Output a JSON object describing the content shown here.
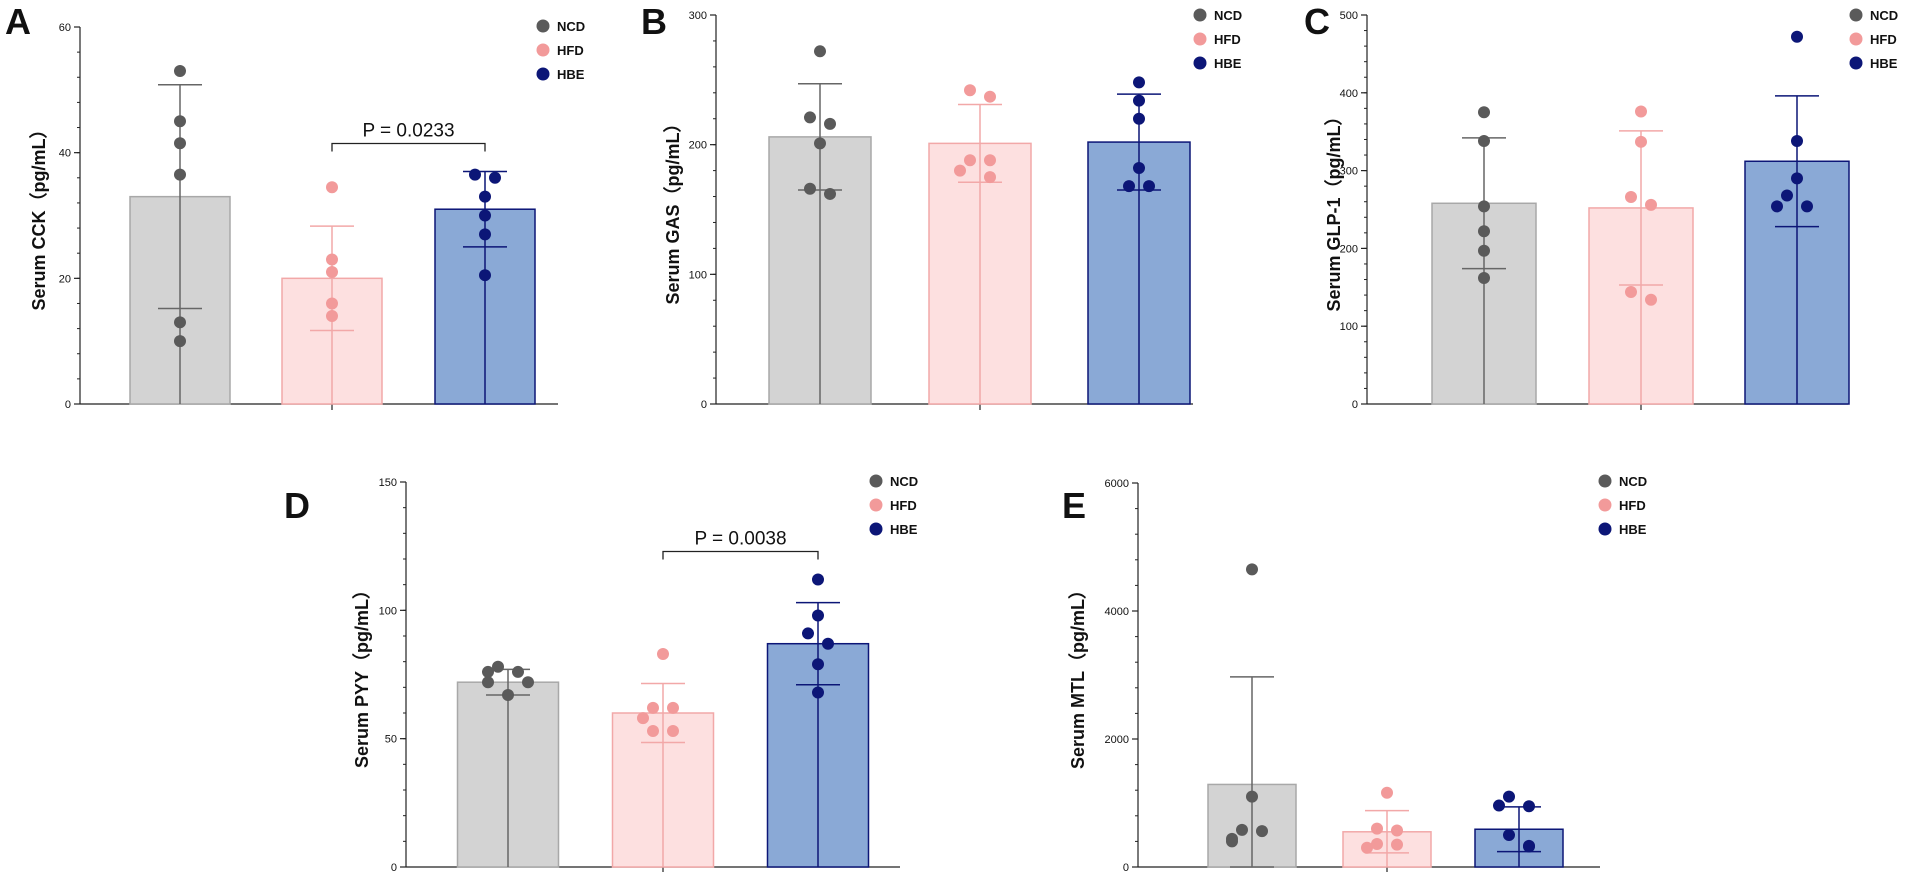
{
  "chart_data": [
    {
      "type": "bar",
      "panel": "A",
      "ylabel": "Serum CCK（pg/mL）",
      "ylim": [
        0,
        60
      ],
      "yticks": [
        0,
        20,
        40,
        60
      ],
      "categories": [
        "NCD",
        "HFD",
        "HBE"
      ],
      "means": [
        33,
        20,
        31
      ],
      "sd": [
        17.8,
        8.3,
        6
      ],
      "points": [
        [
          53,
          45,
          41.5,
          36.5,
          13,
          10
        ],
        [
          34.5,
          23,
          21,
          16,
          14
        ],
        [
          36.5,
          36,
          33,
          30,
          27,
          20.5
        ]
      ],
      "significance": {
        "from": "HFD",
        "to": "HBE",
        "label": "P = 0.0233"
      }
    },
    {
      "type": "bar",
      "panel": "B",
      "ylabel": "Serum GAS（pg/mL）",
      "ylim": [
        0,
        300
      ],
      "yticks": [
        0,
        100,
        200,
        300
      ],
      "categories": [
        "NCD",
        "HFD",
        "HBE"
      ],
      "means": [
        206,
        201,
        202
      ],
      "sd": [
        41,
        30,
        37
      ],
      "points": [
        [
          272,
          221,
          216,
          201,
          166,
          162
        ],
        [
          242,
          237,
          188,
          188,
          180,
          175
        ],
        [
          248,
          234,
          220,
          182,
          168,
          168
        ]
      ]
    },
    {
      "type": "bar",
      "panel": "C",
      "ylabel": "Serum GLP-1（pg/mL）",
      "ylim": [
        0,
        500
      ],
      "yticks": [
        0,
        100,
        200,
        300,
        400,
        500
      ],
      "categories": [
        "NCD",
        "HFD",
        "HBE"
      ],
      "means": [
        258,
        252,
        312
      ],
      "sd": [
        84,
        99,
        84
      ],
      "points": [
        [
          375,
          338,
          254,
          222,
          197,
          162
        ],
        [
          376,
          337,
          266,
          256,
          144,
          134
        ],
        [
          472,
          338,
          290,
          268,
          254,
          254
        ]
      ]
    },
    {
      "type": "bar",
      "panel": "D",
      "ylabel": "Serum PYY（pg/mL）",
      "ylim": [
        0,
        150
      ],
      "yticks": [
        0,
        50,
        100,
        150
      ],
      "categories": [
        "NCD",
        "HFD",
        "HBE"
      ],
      "means": [
        72,
        60,
        87
      ],
      "sd": [
        5,
        11.5,
        16
      ],
      "points": [
        [
          78,
          76,
          76,
          72,
          72,
          67
        ],
        [
          83,
          62,
          62,
          58,
          53,
          53
        ],
        [
          112,
          98,
          91,
          87,
          79,
          68
        ]
      ],
      "significance": {
        "from": "HFD",
        "to": "HBE",
        "label": "P = 0.0038"
      }
    },
    {
      "type": "bar",
      "panel": "E",
      "ylabel": "Serum MTL（pg/mL）",
      "ylim": [
        0,
        6000
      ],
      "yticks": [
        0,
        2000,
        4000,
        6000
      ],
      "categories": [
        "NCD",
        "HFD",
        "HBE"
      ],
      "means": [
        1290,
        550,
        590
      ],
      "sd": [
        1680,
        330,
        350
      ],
      "points": [
        [
          4650,
          1100,
          580,
          560,
          440,
          400
        ],
        [
          1160,
          600,
          570,
          360,
          350,
          300
        ],
        [
          1100,
          950,
          960,
          500,
          330,
          320
        ]
      ]
    }
  ],
  "legend": [
    {
      "label": "NCD",
      "color": "#5a5a5a"
    },
    {
      "label": "HFD",
      "color": "#f29a9a"
    },
    {
      "label": "HBE",
      "color": "#0c1677"
    }
  ],
  "colors": {
    "NCD": {
      "fill": "#d3d3d3",
      "stroke": "#a8a8a8",
      "point": "#5a5a5a",
      "errorbar": "#666666"
    },
    "HFD": {
      "fill": "#fde0e0",
      "stroke": "#f2a8a8",
      "point": "#f29a9a",
      "errorbar": "#f2a8a8"
    },
    "HBE": {
      "fill": "#8aa9d6",
      "stroke": "#0c1677",
      "point": "#0c1677",
      "errorbar": "#0c1677"
    }
  }
}
